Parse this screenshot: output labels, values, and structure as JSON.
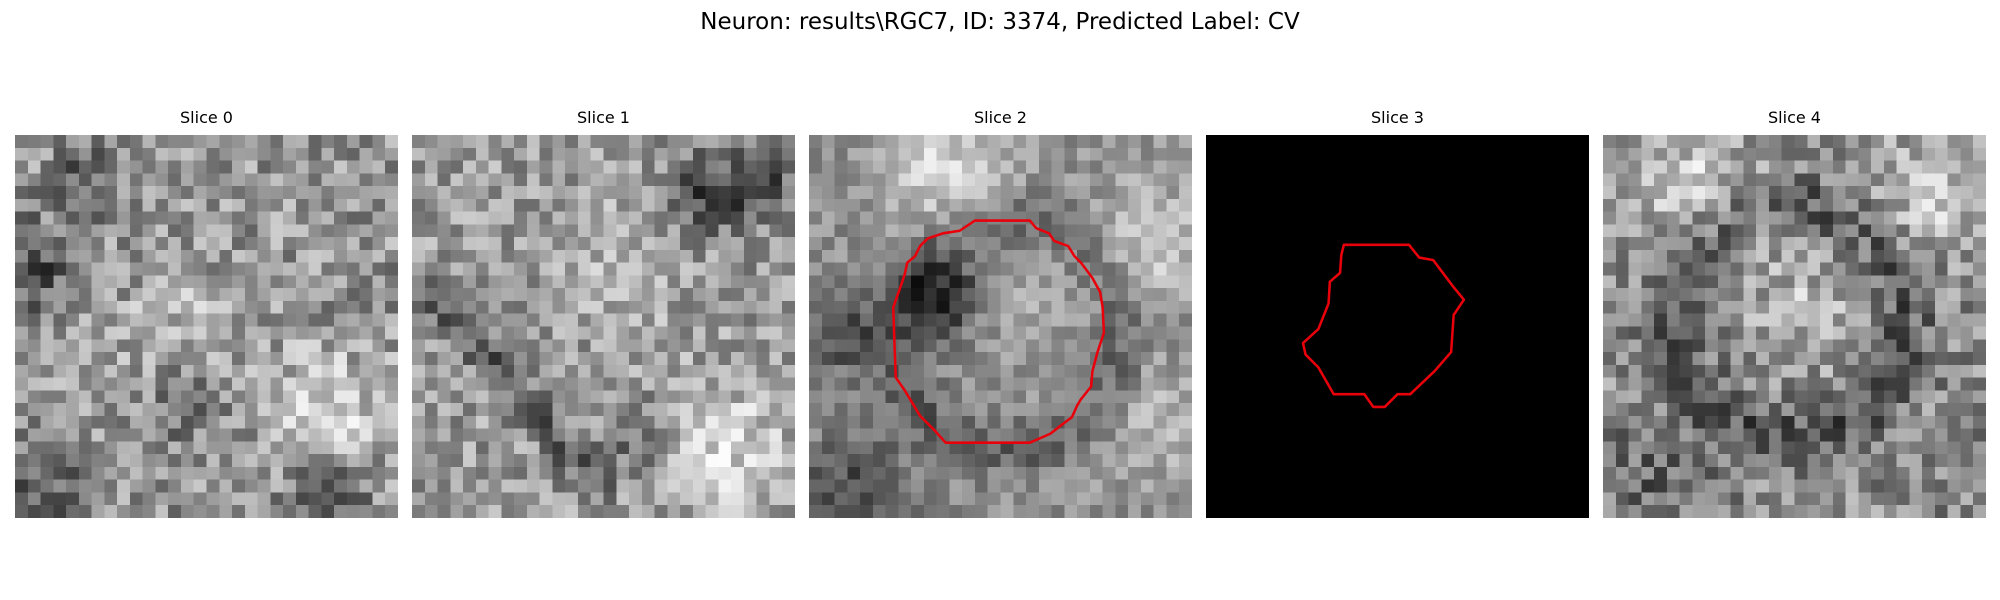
{
  "figure": {
    "title": "Neuron: results\\RGC7, ID: 3374, Predicted Label: CV"
  },
  "panels": [
    {
      "title": "Slice 0",
      "kind": "grayscale-patch",
      "contour": false
    },
    {
      "title": "Slice 1",
      "kind": "grayscale-patch",
      "contour": false
    },
    {
      "title": "Slice 2",
      "kind": "grayscale-patch",
      "contour": true
    },
    {
      "title": "Slice 3",
      "kind": "mask",
      "contour": true
    },
    {
      "title": "Slice 4",
      "kind": "grayscale-patch",
      "contour": false
    }
  ],
  "colors": {
    "background": "#ffffff",
    "contour": "#e8000b",
    "mask_background": "#000000"
  }
}
